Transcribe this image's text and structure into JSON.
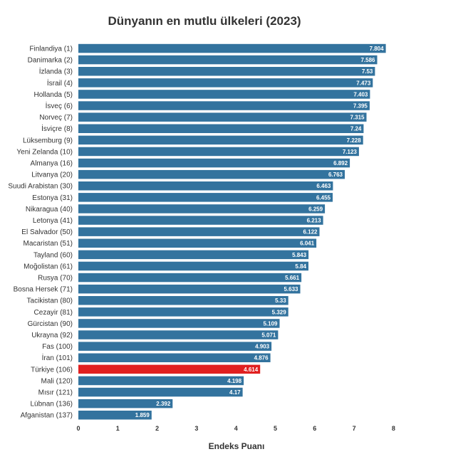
{
  "chart_data": {
    "type": "bar",
    "orientation": "horizontal",
    "title": "Dünyanın en mutlu ülkeleri (2023)",
    "xlabel": "Endeks Puanı",
    "ylabel": "",
    "xlim": [
      0,
      8
    ],
    "xticks": [
      "0",
      "1",
      "2",
      "3",
      "4",
      "5",
      "6",
      "7",
      "8"
    ],
    "grid": false,
    "bar_color": "#33739e",
    "highlight_color": "#e02020",
    "highlight_category": "Türkiye (106)",
    "categories": [
      "Finlandiya (1)",
      "Danimarka (2)",
      "İzlanda (3)",
      "İsrail (4)",
      "Hollanda (5)",
      "İsveç (6)",
      "Norveç (7)",
      "İsviçre (8)",
      "Lüksemburg (9)",
      "Yeni Zelanda (10)",
      "Almanya (16)",
      "Litvanya (20)",
      "Suudi Arabistan (30)",
      "Estonya (31)",
      "Nikaragua (40)",
      "Letonya (41)",
      "El Salvador (50)",
      "Macaristan (51)",
      "Tayland (60)",
      "Moğolistan (61)",
      "Rusya (70)",
      "Bosna Hersek (71)",
      "Tacikistan (80)",
      "Cezayir (81)",
      "Gürcistan (90)",
      "Ukrayna (92)",
      "Fas (100)",
      "İran (101)",
      "Türkiye (106)",
      "Mali (120)",
      "Mısır (121)",
      "Lübnan (136)",
      "Afganistan (137)"
    ],
    "value_labels": [
      "7.804",
      "7.586",
      "7.53",
      "7.473",
      "7.403",
      "7.395",
      "7.315",
      "7.24",
      "7.228",
      "7.123",
      "6.892",
      "6.763",
      "6.463",
      "6.455",
      "6.259",
      "6.213",
      "6.122",
      "6.041",
      "5.843",
      "5.84",
      "5.661",
      "5.633",
      "5.33",
      "5.329",
      "5.109",
      "5.071",
      "4.903",
      "4.876",
      "4.614",
      "4.198",
      "4.17",
      "2.392",
      "1.859"
    ],
    "values": [
      7.804,
      7.586,
      7.53,
      7.473,
      7.403,
      7.395,
      7.315,
      7.24,
      7.228,
      7.123,
      6.892,
      6.763,
      6.463,
      6.455,
      6.259,
      6.213,
      6.122,
      6.041,
      5.843,
      5.84,
      5.661,
      5.633,
      5.33,
      5.329,
      5.109,
      5.071,
      4.903,
      4.876,
      4.614,
      4.198,
      4.17,
      2.392,
      1.859
    ]
  }
}
